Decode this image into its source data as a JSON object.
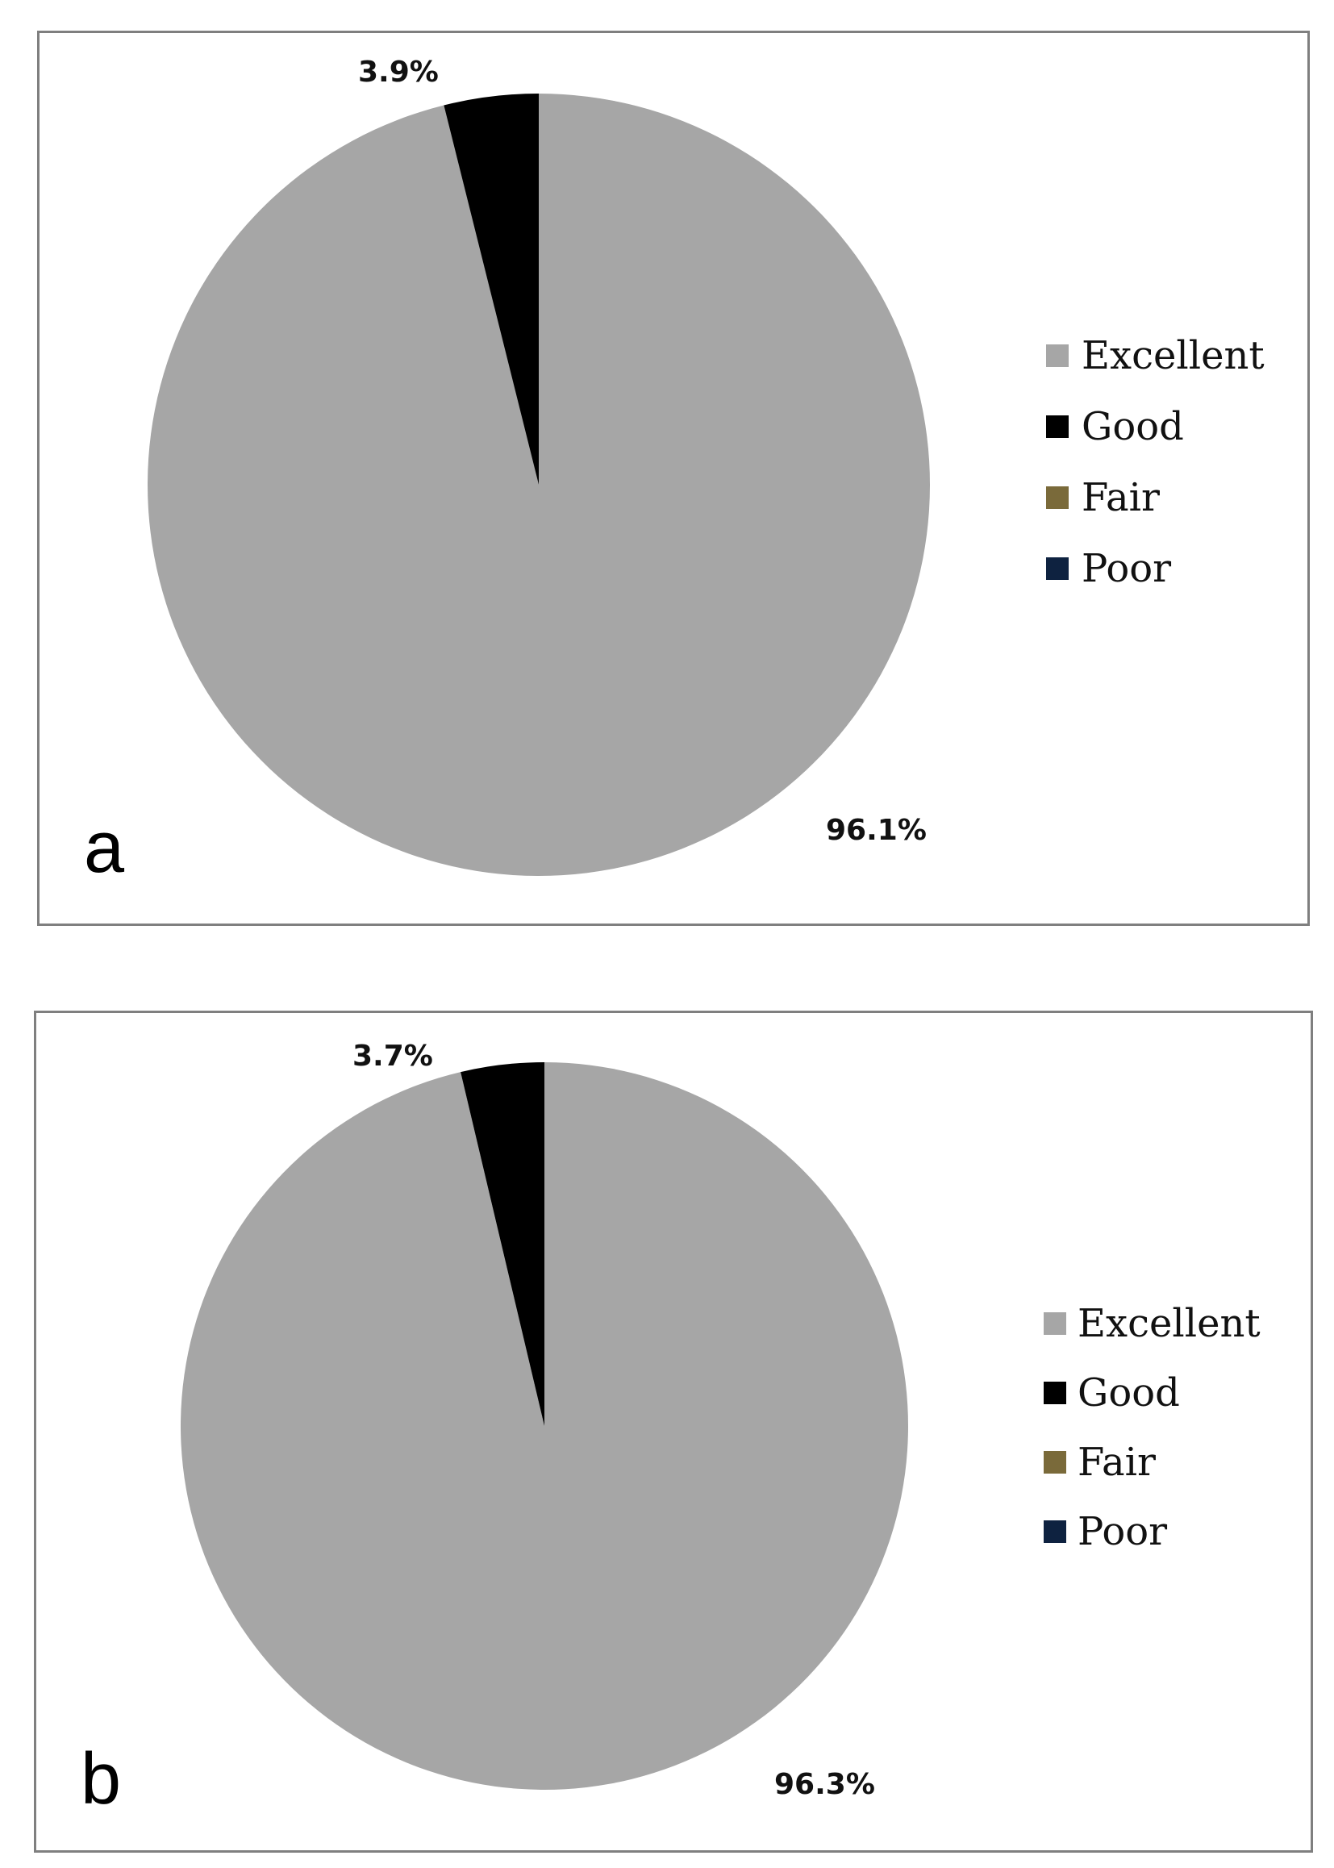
{
  "chart_data": [
    {
      "type": "pie",
      "panel_label": "a",
      "start_angle_deg": 0,
      "direction": "clockwise",
      "slices": [
        {
          "name": "Excellent",
          "value": 96.1,
          "label": "96.1%",
          "color": "#a6a6a6"
        },
        {
          "name": "Good",
          "value": 3.9,
          "label": "3.9%",
          "color": "#000000"
        },
        {
          "name": "Fair",
          "value": 0,
          "label": "",
          "color": "#7a6a3a"
        },
        {
          "name": "Poor",
          "value": 0,
          "label": "",
          "color": "#0e2240"
        }
      ],
      "legend": [
        "Excellent",
        "Good",
        "Fair",
        "Poor"
      ],
      "legend_position": "right"
    },
    {
      "type": "pie",
      "panel_label": "b",
      "start_angle_deg": 0,
      "direction": "clockwise",
      "slices": [
        {
          "name": "Excellent",
          "value": 96.3,
          "label": "96.3%",
          "color": "#a6a6a6"
        },
        {
          "name": "Good",
          "value": 3.7,
          "label": "3.7%",
          "color": "#000000"
        },
        {
          "name": "Fair",
          "value": 0,
          "label": "",
          "color": "#7a6a3a"
        },
        {
          "name": "Poor",
          "value": 0,
          "label": "",
          "color": "#0e2240"
        }
      ],
      "legend": [
        "Excellent",
        "Good",
        "Fair",
        "Poor"
      ],
      "legend_position": "right"
    }
  ]
}
